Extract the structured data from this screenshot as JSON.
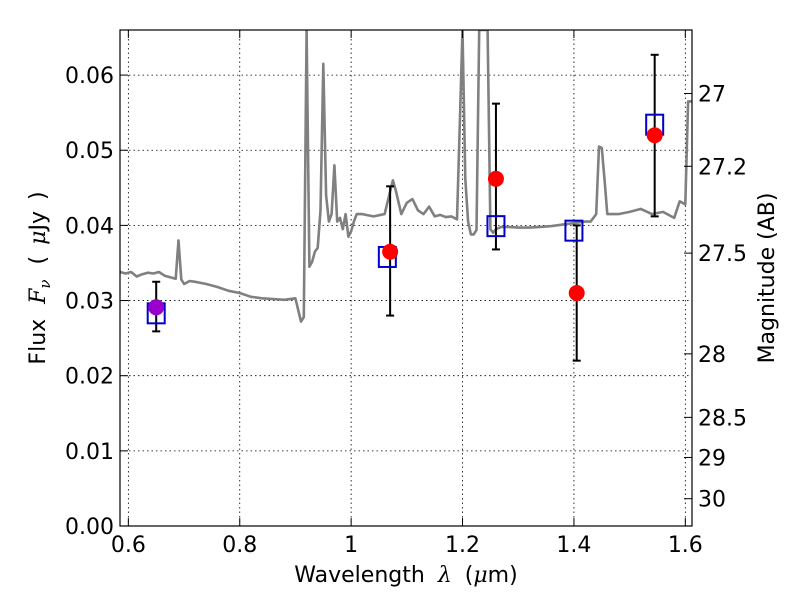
{
  "chart_data": {
    "type": "scatter",
    "xlabel_prefix": "Wavelength",
    "xlabel_lambda": "λ",
    "xlabel_unit_open": "(",
    "xlabel_mu": "μ",
    "xlabel_unit_rest": "m)",
    "ylabel_prefix": "Flux",
    "ylabel_F": "F",
    "ylabel_nu": "ν",
    "ylabel_open": "(",
    "ylabel_mu": "μ",
    "ylabel_unit": "Jy",
    "ylabel_close": ")",
    "y2label": "Magnitude (AB)",
    "xlim": [
      0.585,
      1.612
    ],
    "ylim": [
      0.0,
      0.066
    ],
    "x_ticks": [
      0.6,
      0.8,
      1.0,
      1.2,
      1.4,
      1.6
    ],
    "x_tick_labels": [
      "0.6",
      "0.8",
      "1",
      "1.2",
      "1.4",
      "1.6"
    ],
    "y_ticks": [
      0.0,
      0.01,
      0.02,
      0.03,
      0.04,
      0.05,
      0.06
    ],
    "y_tick_labels": [
      "0.00",
      "0.01",
      "0.02",
      "0.03",
      "0.04",
      "0.05",
      "0.06"
    ],
    "mag_ticks": [
      27,
      27.2,
      27.5,
      28,
      28.5,
      29,
      30
    ],
    "mag_tick_labels": [
      "27",
      "27.2",
      "27.5",
      "28",
      "28.5",
      "29",
      "30"
    ],
    "grid": true,
    "colors": {
      "spectrum": "#808080",
      "observed": "#ff0000",
      "observed_blended": "#9900cc",
      "model": "#0000cc",
      "errorbar": "#000000"
    },
    "series": [
      {
        "name": "model spectrum",
        "kind": "line",
        "x": [
          0.585,
          0.595,
          0.605,
          0.615,
          0.625,
          0.635,
          0.645,
          0.655,
          0.665,
          0.675,
          0.685,
          0.69,
          0.695,
          0.7,
          0.71,
          0.72,
          0.74,
          0.76,
          0.78,
          0.8,
          0.82,
          0.84,
          0.86,
          0.88,
          0.9,
          0.91,
          0.915,
          0.92,
          0.925,
          0.93,
          0.935,
          0.94,
          0.945,
          0.95,
          0.955,
          0.96,
          0.965,
          0.97,
          0.975,
          0.98,
          0.985,
          0.99,
          0.995,
          1.0,
          1.005,
          1.01,
          1.02,
          1.04,
          1.06,
          1.07,
          1.075,
          1.08,
          1.09,
          1.1,
          1.11,
          1.12,
          1.13,
          1.14,
          1.15,
          1.16,
          1.17,
          1.18,
          1.19,
          1.195,
          1.2,
          1.205,
          1.21,
          1.215,
          1.22,
          1.225,
          1.23,
          1.235,
          1.24,
          1.245,
          1.25,
          1.255,
          1.26,
          1.27,
          1.28,
          1.3,
          1.32,
          1.34,
          1.36,
          1.38,
          1.4,
          1.42,
          1.43,
          1.44,
          1.445,
          1.45,
          1.455,
          1.46,
          1.47,
          1.48,
          1.5,
          1.52,
          1.54,
          1.56,
          1.58,
          1.59,
          1.6,
          1.605,
          1.612
        ],
        "y": [
          0.0338,
          0.0336,
          0.0338,
          0.0332,
          0.0335,
          0.0337,
          0.0336,
          0.0338,
          0.0333,
          0.0331,
          0.0329,
          0.038,
          0.0328,
          0.0322,
          0.0326,
          0.0325,
          0.0322,
          0.0318,
          0.0313,
          0.031,
          0.0305,
          0.0303,
          0.0302,
          0.0301,
          0.0303,
          0.0272,
          0.0278,
          0.066,
          0.0345,
          0.0352,
          0.0365,
          0.037,
          0.042,
          0.0615,
          0.044,
          0.0405,
          0.0415,
          0.048,
          0.0405,
          0.041,
          0.0395,
          0.0415,
          0.0385,
          0.0392,
          0.0405,
          0.0415,
          0.0415,
          0.0412,
          0.0415,
          0.0445,
          0.046,
          0.0447,
          0.0415,
          0.043,
          0.0435,
          0.042,
          0.0415,
          0.0425,
          0.0412,
          0.0414,
          0.0411,
          0.0412,
          0.0408,
          0.053,
          0.066,
          0.0462,
          0.0405,
          0.0388,
          0.0388,
          0.0394,
          0.066,
          0.066,
          0.066,
          0.066,
          0.0395,
          0.039,
          0.0395,
          0.0398,
          0.0398,
          0.0397,
          0.0397,
          0.0398,
          0.0399,
          0.0401,
          0.0403,
          0.0405,
          0.0405,
          0.0415,
          0.0505,
          0.0503,
          0.046,
          0.0415,
          0.0415,
          0.0415,
          0.0418,
          0.0422,
          0.0415,
          0.0418,
          0.041,
          0.0432,
          0.0428,
          0.0565,
          0.0565
        ]
      },
      {
        "name": "observed photometry",
        "kind": "points",
        "x": [
          0.65,
          1.07,
          1.26,
          1.405,
          1.545
        ],
        "y": [
          0.0291,
          0.0365,
          0.0462,
          0.031,
          0.052
        ],
        "blended": [
          true,
          false,
          false,
          false,
          false
        ]
      },
      {
        "name": "error bars",
        "kind": "errorbar",
        "x": [
          0.65,
          1.07,
          1.26,
          1.405,
          1.545
        ],
        "y_low": [
          0.0259,
          0.028,
          0.0368,
          0.022,
          0.0412
        ],
        "y_high": [
          0.0325,
          0.0452,
          0.0562,
          0.04,
          0.0627
        ]
      },
      {
        "name": "model photometry",
        "kind": "squares",
        "x": [
          0.65,
          1.065,
          1.26,
          1.4,
          1.545
        ],
        "y": [
          0.0283,
          0.0358,
          0.0399,
          0.0393,
          0.0534
        ]
      }
    ]
  }
}
